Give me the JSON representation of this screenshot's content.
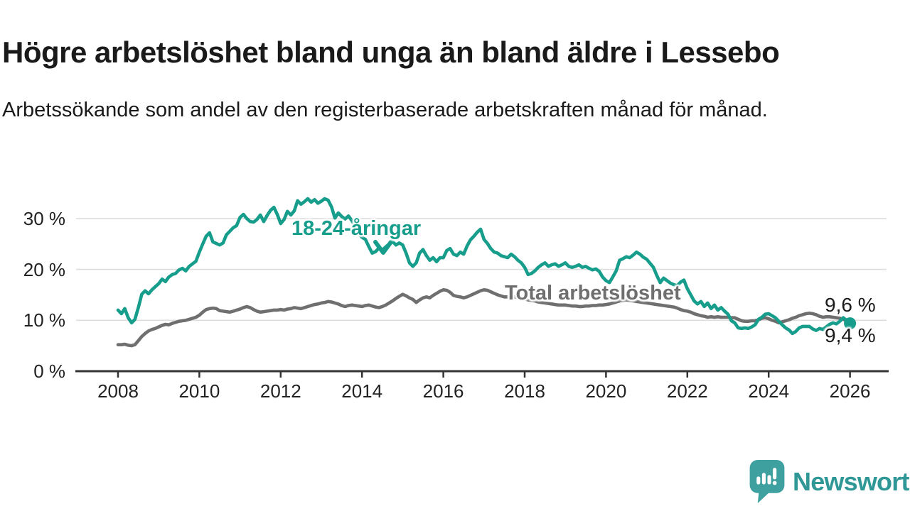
{
  "title": "Högre arbetslöshet bland unga än bland äldre i Lessebo",
  "subtitle": "Arbetssökande som andel av den registerbaserade arbetskraften månad för månad.",
  "colors": {
    "youth": "#179d8b",
    "total": "#6f6f6f",
    "grid": "#dedede",
    "axis": "#333333",
    "text": "#1a1a1a",
    "logo": "#3fa0a0",
    "logo_text": "#2f9897"
  },
  "footer": {
    "brand": "Newsworthy",
    "logo_icon": "speech-bubble-bar-chart-icon"
  },
  "chart_data": {
    "type": "line",
    "title": "Högre arbetslöshet bland unga än bland äldre i Lessebo",
    "subtitle": "Arbetssökande som andel av den registerbaserade arbetskraften månad för månad.",
    "x_unit": "month",
    "x_start": "2008-01",
    "x_end": "2026-01",
    "xlim": [
      2008,
      2026.4
    ],
    "ylim": [
      0,
      35.3
    ],
    "grid": "horizontal",
    "legend_position": "inline-annotations",
    "x_tick_years": [
      2008,
      2010,
      2012,
      2014,
      2016,
      2018,
      2020,
      2022,
      2024,
      2026
    ],
    "x_tick_labels": [
      "2008",
      "2010",
      "2012",
      "2014",
      "2016",
      "2018",
      "2020",
      "2022",
      "2024",
      "2026"
    ],
    "y_tick_values": [
      0,
      10,
      20,
      30
    ],
    "y_tick_labels": [
      "0 %",
      "10 %",
      "20 %",
      "30 %"
    ],
    "end_labels": {
      "top": "9,6 %",
      "bottom": "9,4 %"
    },
    "annotations": {
      "youth_label": "18-24-åringar",
      "youth_arrow": "chevron-down at mid-2014 pointing to youth line",
      "total_label": "Total arbetslöshet"
    },
    "series": [
      {
        "id": "total",
        "name": "Total arbetslöshet",
        "color_key": "total",
        "end_value_label": "9,6 %",
        "values": [
          5.2,
          5.2,
          5.3,
          5.1,
          5.0,
          5.2,
          6.0,
          6.8,
          7.4,
          7.9,
          8.2,
          8.4,
          8.7,
          9.0,
          9.2,
          9.1,
          9.4,
          9.6,
          9.8,
          9.9,
          10.0,
          10.2,
          10.4,
          10.6,
          11.0,
          11.6,
          12.1,
          12.3,
          12.4,
          12.3,
          11.9,
          11.8,
          11.7,
          11.6,
          11.8,
          12.0,
          12.2,
          12.5,
          12.7,
          12.5,
          12.1,
          11.8,
          11.6,
          11.7,
          11.8,
          11.9,
          12.0,
          12.0,
          12.1,
          12.0,
          12.2,
          12.3,
          12.5,
          12.4,
          12.3,
          12.5,
          12.7,
          12.9,
          13.1,
          13.2,
          13.4,
          13.5,
          13.7,
          13.6,
          13.4,
          13.2,
          12.9,
          12.7,
          12.9,
          13.0,
          12.9,
          12.8,
          12.7,
          12.9,
          13.0,
          12.8,
          12.6,
          12.5,
          12.7,
          13.0,
          13.4,
          13.8,
          14.3,
          14.7,
          15.1,
          14.8,
          14.4,
          14.1,
          13.5,
          14.0,
          14.4,
          14.6,
          14.4,
          14.9,
          15.3,
          15.7,
          16.0,
          15.9,
          15.5,
          14.9,
          14.7,
          14.6,
          14.4,
          14.6,
          14.9,
          15.2,
          15.5,
          15.8,
          16.0,
          15.9,
          15.6,
          15.3,
          15.0,
          14.8,
          14.6,
          14.6,
          14.7,
          14.6,
          14.4,
          14.3,
          14.2,
          14.0,
          13.9,
          13.8,
          13.6,
          13.5,
          13.4,
          13.3,
          13.2,
          13.1,
          13.0,
          13.0,
          13.0,
          12.9,
          12.8,
          12.8,
          12.7,
          12.7,
          12.8,
          12.8,
          12.9,
          12.9,
          13.0,
          13.0,
          13.1,
          13.2,
          13.4,
          13.6,
          13.8,
          13.9,
          14.0,
          13.9,
          13.8,
          13.7,
          13.6,
          13.5,
          13.4,
          13.3,
          13.2,
          13.1,
          13.0,
          12.9,
          12.8,
          12.7,
          12.6,
          12.4,
          12.1,
          11.9,
          11.8,
          11.6,
          11.3,
          11.1,
          10.9,
          10.8,
          10.6,
          10.7,
          10.6,
          10.7,
          10.6,
          10.6,
          10.6,
          10.5,
          10.5,
          10.2,
          9.9,
          9.8,
          9.8,
          9.9,
          9.9,
          10.1,
          10.4,
          10.5,
          10.3,
          10.0,
          9.8,
          9.5,
          9.7,
          9.9,
          10.1,
          10.4,
          10.6,
          10.9,
          11.1,
          11.3,
          11.4,
          11.3,
          11.1,
          10.8,
          10.6,
          10.7,
          10.7,
          10.6,
          10.5,
          10.4,
          10.2,
          9.9,
          9.6
        ]
      },
      {
        "id": "youth",
        "name": "18-24-åringar",
        "color_key": "youth",
        "end_dot": true,
        "end_value_label": "9,4 %",
        "values": [
          12.0,
          11.3,
          12.3,
          10.5,
          9.5,
          10.2,
          12.5,
          15.1,
          15.8,
          15.2,
          16.0,
          16.6,
          17.2,
          18.1,
          17.6,
          18.5,
          19.0,
          19.2,
          19.9,
          20.2,
          19.7,
          20.6,
          21.1,
          21.6,
          23.4,
          25.0,
          26.5,
          27.2,
          25.4,
          25.1,
          24.8,
          25.2,
          26.8,
          27.5,
          28.2,
          28.6,
          30.2,
          30.8,
          30.0,
          29.4,
          29.3,
          29.8,
          30.7,
          29.4,
          30.6,
          31.6,
          32.2,
          30.8,
          29.0,
          29.8,
          31.4,
          30.7,
          31.5,
          33.5,
          32.8,
          33.3,
          33.9,
          33.2,
          33.7,
          33.0,
          33.4,
          33.9,
          33.6,
          32.3,
          30.1,
          31.1,
          30.4,
          29.9,
          30.5,
          29.6,
          28.4,
          27.0,
          26.3,
          25.9,
          24.5,
          23.2,
          23.5,
          24.2,
          23.8,
          24.4,
          25.0,
          25.5,
          24.8,
          25.2,
          24.8,
          23.2,
          21.3,
          20.6,
          21.3,
          23.2,
          23.9,
          22.7,
          21.8,
          22.3,
          21.5,
          22.3,
          22.3,
          23.7,
          24.1,
          23.0,
          22.7,
          23.4,
          23.0,
          24.6,
          25.8,
          26.5,
          27.3,
          27.9,
          25.9,
          25.1,
          24.1,
          23.4,
          23.2,
          22.7,
          22.5,
          22.3,
          23.0,
          22.5,
          21.8,
          21.3,
          20.4,
          19.0,
          19.2,
          19.7,
          20.4,
          20.9,
          21.3,
          20.6,
          20.9,
          21.1,
          20.6,
          20.9,
          21.3,
          20.6,
          20.4,
          20.6,
          20.9,
          20.4,
          20.6,
          20.2,
          19.9,
          20.1,
          19.6,
          18.5,
          17.8,
          17.4,
          18.5,
          19.7,
          21.8,
          22.1,
          22.5,
          22.3,
          22.8,
          23.4,
          23.0,
          22.4,
          22.0,
          21.2,
          20.4,
          18.8,
          17.4,
          18.3,
          17.8,
          17.3,
          17.0,
          16.8,
          17.5,
          17.9,
          16.2,
          15.0,
          13.8,
          13.2,
          13.7,
          12.7,
          13.4,
          12.3,
          13.0,
          12.0,
          12.5,
          11.8,
          11.2,
          9.9,
          9.5,
          8.5,
          8.4,
          8.5,
          8.4,
          8.7,
          9.1,
          10.2,
          10.6,
          11.2,
          11.3,
          10.9,
          10.5,
          9.8,
          9.1,
          8.5,
          8.1,
          7.4,
          7.8,
          8.5,
          8.8,
          8.8,
          8.8,
          8.3,
          8.0,
          8.4,
          8.2,
          8.7,
          9.2,
          9.5,
          9.3,
          9.8,
          10.5,
          10.0,
          9.4
        ]
      }
    ]
  }
}
